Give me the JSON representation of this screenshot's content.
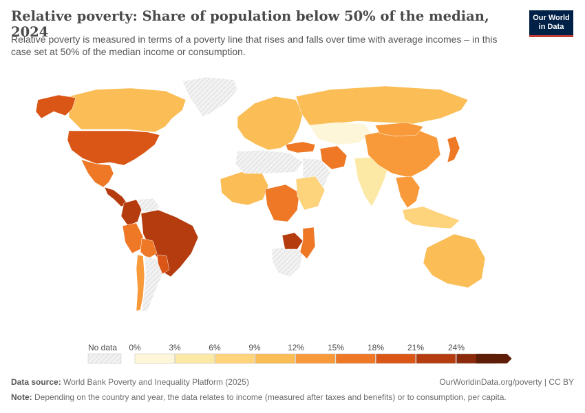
{
  "header": {
    "title": "Relative poverty: Share of population below 50% of the median, 2024",
    "subtitle": "Relative poverty is measured in terms of a poverty line that rises and falls over time with average incomes – in this case set at 50% of the median income or consumption.",
    "logo_line1": "Our World",
    "logo_line2": "in Data"
  },
  "legend": {
    "no_data_label": "No data",
    "ticks": [
      "0%",
      "3%",
      "6%",
      "9%",
      "12%",
      "15%",
      "18%",
      "21%",
      "24%"
    ],
    "colors": [
      "#fef6d8",
      "#fde9a6",
      "#fdd37c",
      "#fbbd55",
      "#f99a3a",
      "#ee7826",
      "#d95616",
      "#b43c0e",
      "#8a2a0a",
      "#5e1d06"
    ]
  },
  "colors": {
    "no_data": "#e8e8e8",
    "background": "#ffffff"
  },
  "regions": [
    {
      "name": "Greenland",
      "value": null
    },
    {
      "name": "Canada",
      "value": 11
    },
    {
      "name": "Alaska (United States)",
      "value": 18
    },
    {
      "name": "United States",
      "value": 18
    },
    {
      "name": "Mexico",
      "value": 17
    },
    {
      "name": "Central America",
      "value": 22
    },
    {
      "name": "Colombia",
      "value": 23
    },
    {
      "name": "Venezuela",
      "value": null
    },
    {
      "name": "Brazil",
      "value": 23
    },
    {
      "name": "Peru",
      "value": 15
    },
    {
      "name": "Bolivia",
      "value": 16
    },
    {
      "name": "Chile",
      "value": 14
    },
    {
      "name": "Argentina",
      "value": null
    },
    {
      "name": "Paraguay and Uruguay",
      "value": 19
    },
    {
      "name": "Europe",
      "value": 10
    },
    {
      "name": "Russia",
      "value": 11
    },
    {
      "name": "Kazakhstan",
      "value": 2
    },
    {
      "name": "Türkiye",
      "value": 16
    },
    {
      "name": "Iran",
      "value": 15
    },
    {
      "name": "Saudi Arabia",
      "value": null
    },
    {
      "name": "India",
      "value": 4
    },
    {
      "name": "China",
      "value": 14
    },
    {
      "name": "Mongolia",
      "value": 13
    },
    {
      "name": "Japan",
      "value": 15
    },
    {
      "name": "Southeast Asia",
      "value": 14
    },
    {
      "name": "Indonesia",
      "value": 7
    },
    {
      "name": "Australia",
      "value": 11
    },
    {
      "name": "West Africa",
      "value": 10
    },
    {
      "name": "North Africa",
      "value": null
    },
    {
      "name": "Central Africa",
      "value": 16
    },
    {
      "name": "East Africa",
      "value": 6
    },
    {
      "name": "Southern Africa",
      "value": null
    },
    {
      "name": "Zimbabwe region",
      "value": 22
    },
    {
      "name": "Mozambique",
      "value": 16
    }
  ],
  "footer": {
    "source_label": "Data source:",
    "source_text": "World Bank Poverty and Inequality Platform (2025)",
    "url_text": "OurWorldinData.org/poverty | CC BY",
    "note_label": "Note:",
    "note_text": "Depending on the country and year, the data relates to income (measured after taxes and benefits) or to consumption, per capita."
  }
}
